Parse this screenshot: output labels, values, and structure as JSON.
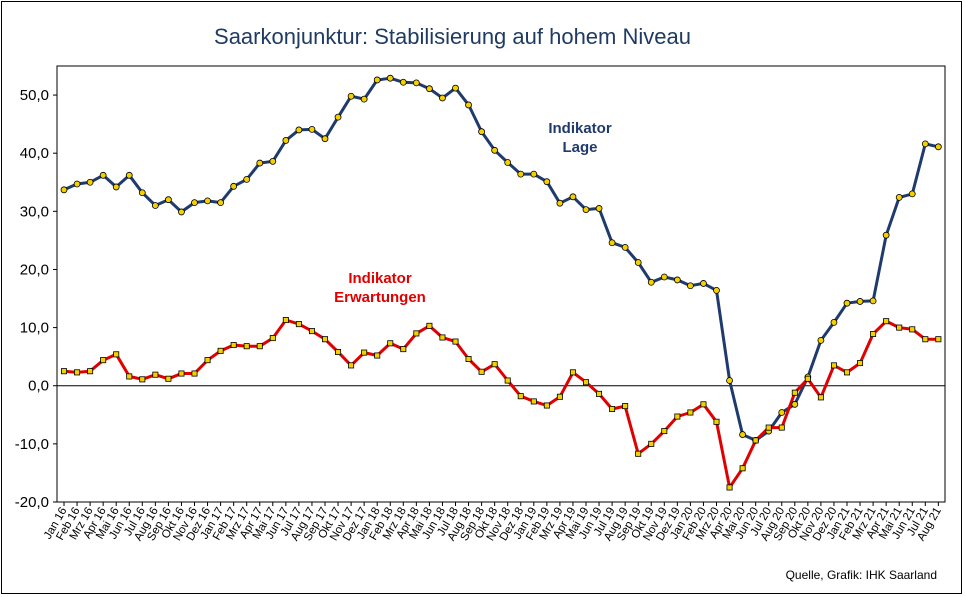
{
  "title": "Saarkonjunktur: Stabilisierung auf hohem Niveau",
  "source": "Quelle, Grafik: IHK Saarland",
  "chart_data": {
    "type": "line",
    "title": "Saarkonjunktur: Stabilisierung auf hohem Niveau",
    "xlabel": "",
    "ylabel": "",
    "ylim": [
      -20,
      55
    ],
    "yticks": [
      "-20,0",
      "-10,0",
      "0,0",
      "10,0",
      "20,0",
      "30,0",
      "40,0",
      "50,0"
    ],
    "ytick_values": [
      -20,
      -10,
      0,
      10,
      20,
      30,
      40,
      50
    ],
    "grid": false,
    "zero_line": true,
    "categories": [
      "Jan 16",
      "Feb 16",
      "Mrz 16",
      "Apr 16",
      "Mai 16",
      "Jun 16",
      "Jul 16",
      "Aug 16",
      "Sep 16",
      "Okt 16",
      "Nov 16",
      "Dez 16",
      "Jan 17",
      "Feb 17",
      "Mrz 17",
      "Apr 17",
      "Mai 17",
      "Jun 17",
      "Jul 17",
      "Aug 17",
      "Sep 17",
      "Okt 17",
      "Nov 17",
      "Dez 17",
      "Jan 18",
      "Feb 18",
      "Mrz 18",
      "Apr 18",
      "Mai 18",
      "Jun 18",
      "Jul 18",
      "Aug 18",
      "Sep 18",
      "Okt 18",
      "Nov 18",
      "Dez 18",
      "Jan 19",
      "Feb 19",
      "Mrz 19",
      "Apr 19",
      "Mai 19",
      "Jun 19",
      "Jul 19",
      "Aug 19",
      "Sep 19",
      "Okt 19",
      "Nov 19",
      "Dez 19",
      "Jan 20",
      "Feb 20",
      "Mrz 20",
      "Apr 20",
      "Mai 20",
      "Jun 20",
      "Jul 20",
      "Aug 20",
      "Sep 20",
      "Okt 20",
      "Nov 20",
      "Dez 20",
      "Jan 21",
      "Feb 21",
      "Mrz 21",
      "Apr 21",
      "Mai 21",
      "Jun 21",
      "Jul 21",
      "Aug 21"
    ],
    "series": [
      {
        "name": "Indikator Lage",
        "label_lines": [
          "Indikator",
          "Lage"
        ],
        "color": "#1f3b6e",
        "marker": "circle",
        "values": [
          33.7,
          34.7,
          35.0,
          36.2,
          34.2,
          36.2,
          33.2,
          31.0,
          32.0,
          29.9,
          31.5,
          31.8,
          31.5,
          34.3,
          35.5,
          38.3,
          38.6,
          42.2,
          44.0,
          44.1,
          42.5,
          46.2,
          49.8,
          49.3,
          52.6,
          52.9,
          52.2,
          52.1,
          51.1,
          49.5,
          51.2,
          48.3,
          43.7,
          40.5,
          38.4,
          36.4,
          36.4,
          35.1,
          31.4,
          32.5,
          30.3,
          30.5,
          24.6,
          23.8,
          21.2,
          17.8,
          18.7,
          18.2,
          17.2,
          17.6,
          16.4,
          0.9,
          -8.4,
          -9.4,
          -7.8,
          -4.6,
          -3.2,
          1.5,
          7.8,
          10.9,
          14.2,
          14.5,
          14.6,
          25.9,
          32.4,
          33.0,
          41.6,
          41.1
        ]
      },
      {
        "name": "Indikator Erwartungen",
        "label_lines": [
          "Indikator",
          "Erwartungen"
        ],
        "color": "#e00000",
        "marker": "square",
        "values": [
          2.5,
          2.3,
          2.5,
          4.4,
          5.4,
          1.6,
          1.1,
          1.9,
          1.2,
          2.1,
          2.1,
          4.4,
          6.0,
          7.0,
          6.8,
          6.8,
          8.2,
          11.3,
          10.6,
          9.4,
          8.0,
          5.8,
          3.5,
          5.7,
          5.2,
          7.3,
          6.3,
          9.0,
          10.3,
          8.3,
          7.6,
          4.6,
          2.4,
          3.7,
          0.9,
          -1.8,
          -2.7,
          -3.4,
          -1.9,
          2.3,
          0.6,
          -1.4,
          -4.0,
          -3.5,
          -11.7,
          -10.0,
          -7.8,
          -5.3,
          -4.6,
          -3.2,
          -6.2,
          -17.5,
          -14.2,
          -9.4,
          -7.2,
          -7.2,
          -1.2,
          1.2,
          -2.0,
          3.5,
          2.3,
          3.9,
          8.9,
          11.1,
          10.0,
          9.7,
          8.0,
          8.0
        ]
      }
    ]
  }
}
